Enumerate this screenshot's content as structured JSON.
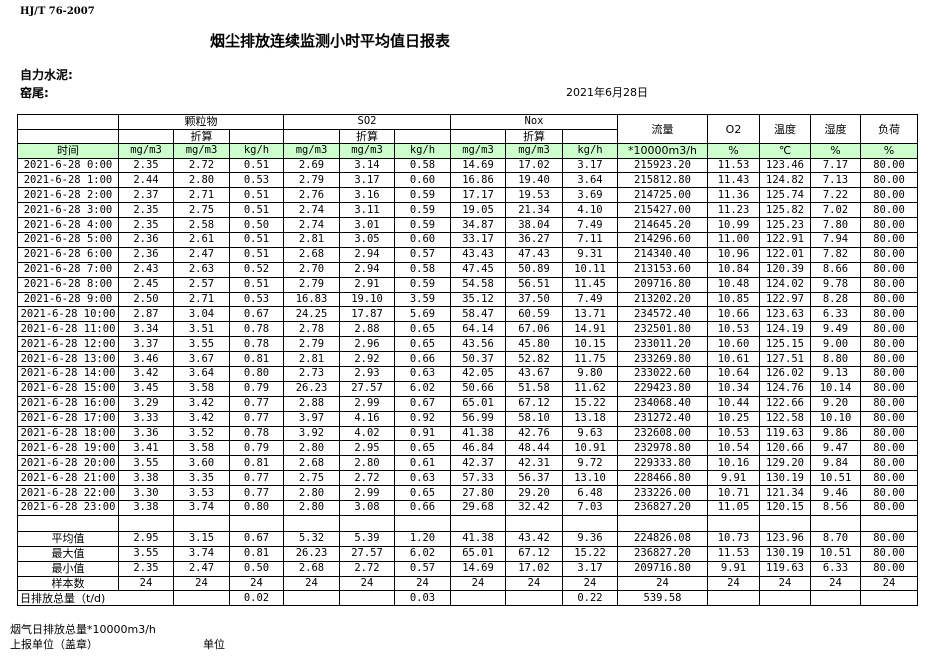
{
  "header": {
    "standard": "HJ/T  76-2007",
    "title": "烟尘排放连续监测小时平均值日报表",
    "company": "自力水泥:",
    "kiln": "窑尾:",
    "date": "2021年6月28日"
  },
  "table": {
    "groups": [
      "颗粒物",
      "SO2",
      "Nox"
    ],
    "converted_label": "折算",
    "time_label": "时间",
    "flow_label": "流量",
    "o2_label": "O2",
    "temp_label": "温度",
    "humidity_label": "湿度",
    "load_label": "负荷",
    "units": [
      "mg/m3",
      "mg/m3",
      "kg/h",
      "mg/m3",
      "mg/m3",
      "kg/h",
      "mg/m3",
      "mg/m3",
      "kg/h",
      "*10000m3/h",
      "%",
      "℃",
      "%",
      "%"
    ],
    "rows": [
      [
        "2021-6-28 0:00",
        "2.35",
        "2.72",
        "0.51",
        "2.69",
        "3.14",
        "0.58",
        "14.69",
        "17.02",
        "3.17",
        "215923.20",
        "11.53",
        "123.46",
        "7.17",
        "80.00"
      ],
      [
        "2021-6-28 1:00",
        "2.44",
        "2.80",
        "0.53",
        "2.79",
        "3.17",
        "0.60",
        "16.86",
        "19.40",
        "3.64",
        "215812.80",
        "11.43",
        "124.82",
        "7.13",
        "80.00"
      ],
      [
        "2021-6-28 2:00",
        "2.37",
        "2.71",
        "0.51",
        "2.76",
        "3.16",
        "0.59",
        "17.17",
        "19.53",
        "3.69",
        "214725.00",
        "11.36",
        "125.74",
        "7.22",
        "80.00"
      ],
      [
        "2021-6-28 3:00",
        "2.35",
        "2.75",
        "0.51",
        "2.74",
        "3.11",
        "0.59",
        "19.05",
        "21.34",
        "4.10",
        "215427.00",
        "11.23",
        "125.82",
        "7.02",
        "80.00"
      ],
      [
        "2021-6-28 4:00",
        "2.35",
        "2.58",
        "0.50",
        "2.74",
        "3.01",
        "0.59",
        "34.87",
        "38.04",
        "7.49",
        "214645.20",
        "10.99",
        "125.23",
        "7.80",
        "80.00"
      ],
      [
        "2021-6-28 5:00",
        "2.36",
        "2.61",
        "0.51",
        "2.81",
        "3.05",
        "0.60",
        "33.17",
        "36.27",
        "7.11",
        "214296.60",
        "11.00",
        "122.91",
        "7.94",
        "80.00"
      ],
      [
        "2021-6-28 6:00",
        "2.36",
        "2.47",
        "0.51",
        "2.68",
        "2.94",
        "0.57",
        "43.43",
        "47.43",
        "9.31",
        "214340.40",
        "10.96",
        "122.01",
        "7.82",
        "80.00"
      ],
      [
        "2021-6-28 7:00",
        "2.43",
        "2.63",
        "0.52",
        "2.70",
        "2.94",
        "0.58",
        "47.45",
        "50.89",
        "10.11",
        "213153.60",
        "10.84",
        "120.39",
        "8.66",
        "80.00"
      ],
      [
        "2021-6-28 8:00",
        "2.45",
        "2.57",
        "0.51",
        "2.79",
        "2.91",
        "0.59",
        "54.58",
        "56.51",
        "11.45",
        "209716.80",
        "10.48",
        "124.02",
        "9.78",
        "80.00"
      ],
      [
        "2021-6-28 9:00",
        "2.50",
        "2.71",
        "0.53",
        "16.83",
        "19.10",
        "3.59",
        "35.12",
        "37.50",
        "7.49",
        "213202.20",
        "10.85",
        "122.97",
        "8.28",
        "80.00"
      ],
      [
        "2021-6-28 10:00",
        "2.87",
        "3.04",
        "0.67",
        "24.25",
        "17.87",
        "5.69",
        "58.47",
        "60.59",
        "13.71",
        "234572.40",
        "10.66",
        "123.63",
        "6.33",
        "80.00"
      ],
      [
        "2021-6-28 11:00",
        "3.34",
        "3.51",
        "0.78",
        "2.78",
        "2.88",
        "0.65",
        "64.14",
        "67.06",
        "14.91",
        "232501.80",
        "10.53",
        "124.19",
        "9.49",
        "80.00"
      ],
      [
        "2021-6-28 12:00",
        "3.37",
        "3.55",
        "0.78",
        "2.79",
        "2.96",
        "0.65",
        "43.56",
        "45.80",
        "10.15",
        "233011.20",
        "10.60",
        "125.15",
        "9.00",
        "80.00"
      ],
      [
        "2021-6-28 13:00",
        "3.46",
        "3.67",
        "0.81",
        "2.81",
        "2.92",
        "0.66",
        "50.37",
        "52.82",
        "11.75",
        "233269.80",
        "10.61",
        "127.51",
        "8.80",
        "80.00"
      ],
      [
        "2021-6-28 14:00",
        "3.42",
        "3.64",
        "0.80",
        "2.73",
        "2.93",
        "0.63",
        "42.05",
        "43.67",
        "9.80",
        "233022.60",
        "10.64",
        "126.02",
        "9.13",
        "80.00"
      ],
      [
        "2021-6-28 15:00",
        "3.45",
        "3.58",
        "0.79",
        "26.23",
        "27.57",
        "6.02",
        "50.66",
        "51.58",
        "11.62",
        "229423.80",
        "10.34",
        "124.76",
        "10.14",
        "80.00"
      ],
      [
        "2021-6-28 16:00",
        "3.29",
        "3.42",
        "0.77",
        "2.88",
        "2.99",
        "0.67",
        "65.01",
        "67.12",
        "15.22",
        "234068.40",
        "10.44",
        "122.66",
        "9.20",
        "80.00"
      ],
      [
        "2021-6-28 17:00",
        "3.33",
        "3.42",
        "0.77",
        "3.97",
        "4.16",
        "0.92",
        "56.99",
        "58.10",
        "13.18",
        "231272.40",
        "10.25",
        "122.58",
        "10.10",
        "80.00"
      ],
      [
        "2021-6-28 18:00",
        "3.36",
        "3.52",
        "0.78",
        "3.92",
        "4.02",
        "0.91",
        "41.38",
        "42.76",
        "9.63",
        "232608.00",
        "10.53",
        "119.63",
        "9.86",
        "80.00"
      ],
      [
        "2021-6-28 19:00",
        "3.41",
        "3.58",
        "0.79",
        "2.80",
        "2.95",
        "0.65",
        "46.84",
        "48.44",
        "10.91",
        "232978.80",
        "10.54",
        "120.66",
        "9.47",
        "80.00"
      ],
      [
        "2021-6-28 20:00",
        "3.55",
        "3.60",
        "0.81",
        "2.68",
        "2.80",
        "0.61",
        "42.37",
        "42.31",
        "9.72",
        "229333.80",
        "10.16",
        "129.20",
        "9.84",
        "80.00"
      ],
      [
        "2021-6-28 21:00",
        "3.38",
        "3.35",
        "0.77",
        "2.75",
        "2.72",
        "0.63",
        "57.33",
        "56.37",
        "13.10",
        "228466.80",
        "9.91",
        "130.19",
        "10.51",
        "80.00"
      ],
      [
        "2021-6-28 22:00",
        "3.30",
        "3.53",
        "0.77",
        "2.80",
        "2.99",
        "0.65",
        "27.80",
        "29.20",
        "6.48",
        "233226.00",
        "10.71",
        "121.34",
        "9.46",
        "80.00"
      ],
      [
        "2021-6-28 23:00",
        "3.38",
        "3.74",
        "0.80",
        "2.80",
        "3.08",
        "0.66",
        "29.68",
        "32.42",
        "7.03",
        "236827.20",
        "11.05",
        "120.15",
        "8.56",
        "80.00"
      ]
    ],
    "stats": [
      [
        "平均值",
        "2.95",
        "3.15",
        "0.67",
        "5.32",
        "5.39",
        "1.20",
        "41.38",
        "43.42",
        "9.36",
        "224826.08",
        "10.73",
        "123.96",
        "8.70",
        "80.00"
      ],
      [
        "最大值",
        "3.55",
        "3.74",
        "0.81",
        "26.23",
        "27.57",
        "6.02",
        "65.01",
        "67.12",
        "15.22",
        "236827.20",
        "11.53",
        "130.19",
        "10.51",
        "80.00"
      ],
      [
        "最小值",
        "2.35",
        "2.47",
        "0.50",
        "2.68",
        "2.72",
        "0.57",
        "14.69",
        "17.02",
        "3.17",
        "209716.80",
        "9.91",
        "119.63",
        "6.33",
        "80.00"
      ],
      [
        "样本数",
        "24",
        "24",
        "24",
        "24",
        "24",
        "24",
        "24",
        "24",
        "24",
        "24",
        "24",
        "24",
        "24",
        "24"
      ]
    ],
    "total": {
      "label": "日排放总量（t/d)",
      "values": [
        "",
        "0.02",
        "",
        "",
        "0.03",
        "",
        "",
        "0.22",
        "539.58",
        "",
        "",
        "",
        ""
      ]
    }
  },
  "footer": {
    "flue_gas_total": "烟气日排放总量*10000m3/h",
    "reporting_unit": "上报单位（盖章）",
    "unit": "单位"
  }
}
